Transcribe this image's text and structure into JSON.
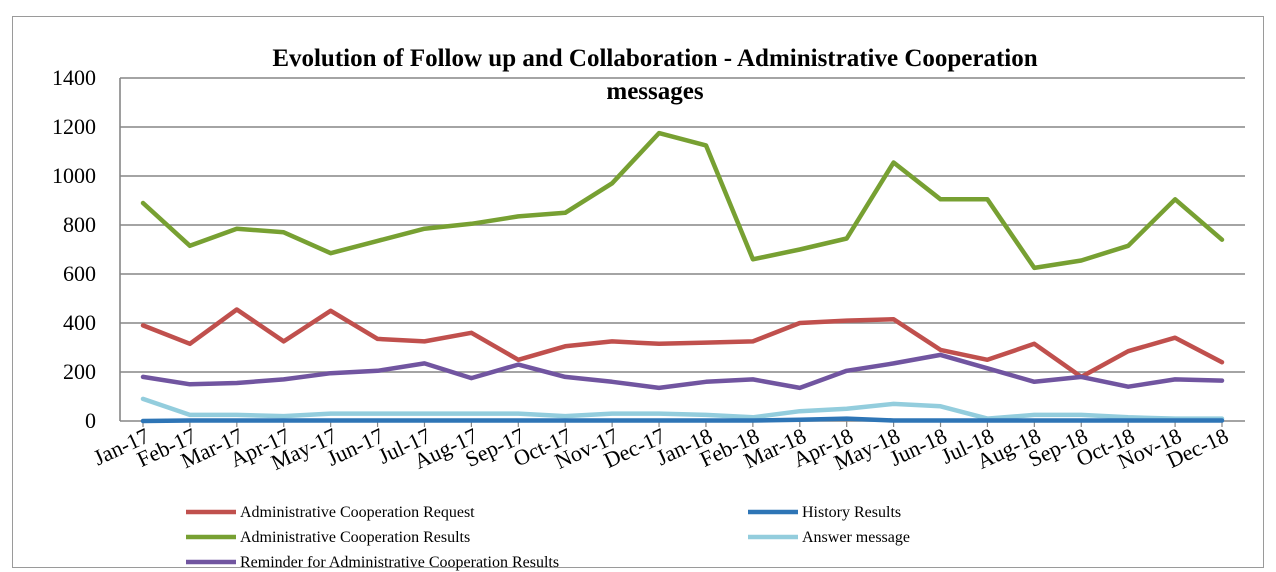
{
  "chart_data": {
    "type": "line",
    "title": [
      "Evolution of Follow up and Collaboration  - Administrative Cooperation",
      "messages"
    ],
    "xlabel": "",
    "ylabel": "",
    "ylim": [
      0,
      1400
    ],
    "yticks": [
      0,
      200,
      400,
      600,
      800,
      1000,
      1200,
      1400
    ],
    "grid": "horizontal",
    "legend_position": "bottom",
    "categories": [
      "Jan-17",
      "Feb-17",
      "Mar-17",
      "Apr-17",
      "May-17",
      "Jun-17",
      "Jul-17",
      "Aug-17",
      "Sep-17",
      "Oct-17",
      "Nov-17",
      "Dec-17",
      "Jan-18",
      "Feb-18",
      "Mar-18",
      "Apr-18",
      "May-18",
      "Jun-18",
      "Jul-18",
      "Aug-18",
      "Sep-18",
      "Oct-18",
      "Nov-18",
      "Dec-18"
    ],
    "series": [
      {
        "name": "Administrative Cooperation Request",
        "color": "#c0504d",
        "values": [
          390,
          315,
          455,
          325,
          450,
          335,
          325,
          360,
          250,
          305,
          325,
          315,
          320,
          325,
          400,
          410,
          415,
          290,
          250,
          315,
          180,
          285,
          340,
          240
        ]
      },
      {
        "name": "History Results",
        "color": "#2e75b6",
        "values": [
          0,
          2,
          2,
          2,
          2,
          2,
          2,
          2,
          2,
          2,
          2,
          2,
          2,
          2,
          5,
          10,
          2,
          2,
          2,
          2,
          2,
          2,
          2,
          2
        ]
      },
      {
        "name": "Administrative Cooperation Results",
        "color": "#77a032",
        "values": [
          890,
          715,
          785,
          770,
          685,
          735,
          785,
          805,
          835,
          850,
          970,
          1175,
          1125,
          660,
          700,
          745,
          1055,
          905,
          905,
          625,
          655,
          715,
          905,
          740
        ]
      },
      {
        "name": "Answer message",
        "color": "#93cddd",
        "values": [
          90,
          25,
          25,
          20,
          30,
          30,
          30,
          30,
          30,
          20,
          30,
          30,
          25,
          15,
          40,
          50,
          70,
          60,
          10,
          25,
          25,
          15,
          10,
          10
        ]
      },
      {
        "name": "Reminder for Administrative Cooperation Results",
        "color": "#7155a0",
        "values": [
          180,
          150,
          155,
          170,
          195,
          205,
          235,
          175,
          230,
          180,
          160,
          135,
          160,
          170,
          135,
          205,
          235,
          270,
          215,
          160,
          180,
          140,
          170,
          165
        ]
      }
    ]
  }
}
